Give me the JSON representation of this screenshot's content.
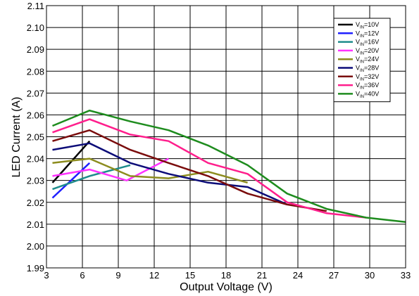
{
  "chart_data": {
    "type": "line",
    "xlabel": "Output Voltage (V)",
    "ylabel": "LED Current (A)",
    "xlim": [
      3,
      33
    ],
    "ylim": [
      1.99,
      2.11
    ],
    "x_ticks": [
      "3",
      "6",
      "9",
      "12",
      "15",
      "18",
      "21",
      "24",
      "27",
      "30",
      "33"
    ],
    "y_ticks": [
      "1.99",
      "2.00",
      "2.01",
      "2.02",
      "2.03",
      "2.04",
      "2.05",
      "2.06",
      "2.07",
      "2.08",
      "2.09",
      "2.10",
      "2.11"
    ],
    "grid": true,
    "legend_position": "top-right",
    "series": [
      {
        "name_main": "V",
        "name_sub": "IN",
        "name_rest": "=10V",
        "color": "#000000",
        "points": [
          [
            3.5,
            2.029
          ],
          [
            6.6,
            2.048
          ]
        ]
      },
      {
        "name_main": "V",
        "name_sub": "IN",
        "name_rest": "=12V",
        "color": "#1f1fff",
        "points": [
          [
            3.5,
            2.022
          ],
          [
            6.6,
            2.038
          ]
        ]
      },
      {
        "name_main": "V",
        "name_sub": "IN",
        "name_rest": "=16V",
        "color": "#1e8c8c",
        "points": [
          [
            3.5,
            2.026
          ],
          [
            6.6,
            2.032
          ],
          [
            10.0,
            2.037
          ]
        ]
      },
      {
        "name_main": "V",
        "name_sub": "IN",
        "name_rest": "=20V",
        "color": "#ff33ff",
        "points": [
          [
            3.5,
            2.032
          ],
          [
            6.6,
            2.035
          ],
          [
            9.7,
            2.03
          ],
          [
            13.2,
            2.04
          ]
        ]
      },
      {
        "name_main": "V",
        "name_sub": "IN",
        "name_rest": "=24V",
        "color": "#8c8c1e",
        "points": [
          [
            3.5,
            2.038
          ],
          [
            6.6,
            2.04
          ],
          [
            10.0,
            2.032
          ],
          [
            13.2,
            2.031
          ],
          [
            16.5,
            2.034
          ],
          [
            19.8,
            2.029
          ]
        ]
      },
      {
        "name_main": "V",
        "name_sub": "IN",
        "name_rest": "=28V",
        "color": "#0c0c78",
        "points": [
          [
            3.5,
            2.044
          ],
          [
            6.6,
            2.047
          ],
          [
            10.0,
            2.038
          ],
          [
            13.2,
            2.033
          ],
          [
            16.5,
            2.029
          ],
          [
            19.8,
            2.027
          ],
          [
            23.1,
            2.019
          ]
        ]
      },
      {
        "name_main": "V",
        "name_sub": "IN",
        "name_rest": "=32V",
        "color": "#7a0c0c",
        "points": [
          [
            3.5,
            2.048
          ],
          [
            6.6,
            2.053
          ],
          [
            10.0,
            2.044
          ],
          [
            13.2,
            2.038
          ],
          [
            16.5,
            2.032
          ],
          [
            19.8,
            2.024
          ],
          [
            23.1,
            2.019
          ],
          [
            26.4,
            2.016
          ]
        ]
      },
      {
        "name_main": "V",
        "name_sub": "IN",
        "name_rest": "=36V",
        "color": "#ff1e8c",
        "points": [
          [
            3.5,
            2.052
          ],
          [
            6.6,
            2.058
          ],
          [
            10.0,
            2.051
          ],
          [
            13.2,
            2.048
          ],
          [
            16.5,
            2.038
          ],
          [
            19.8,
            2.033
          ],
          [
            23.1,
            2.02
          ],
          [
            26.4,
            2.015
          ],
          [
            29.7,
            2.013
          ]
        ]
      },
      {
        "name_main": "V",
        "name_sub": "IN",
        "name_rest": "=40V",
        "color": "#1e8c1e",
        "points": [
          [
            3.5,
            2.055
          ],
          [
            6.6,
            2.062
          ],
          [
            10.0,
            2.057
          ],
          [
            13.2,
            2.053
          ],
          [
            16.5,
            2.046
          ],
          [
            19.8,
            2.037
          ],
          [
            23.1,
            2.024
          ],
          [
            26.4,
            2.017
          ],
          [
            29.7,
            2.013
          ],
          [
            33.0,
            2.011
          ]
        ]
      }
    ]
  }
}
